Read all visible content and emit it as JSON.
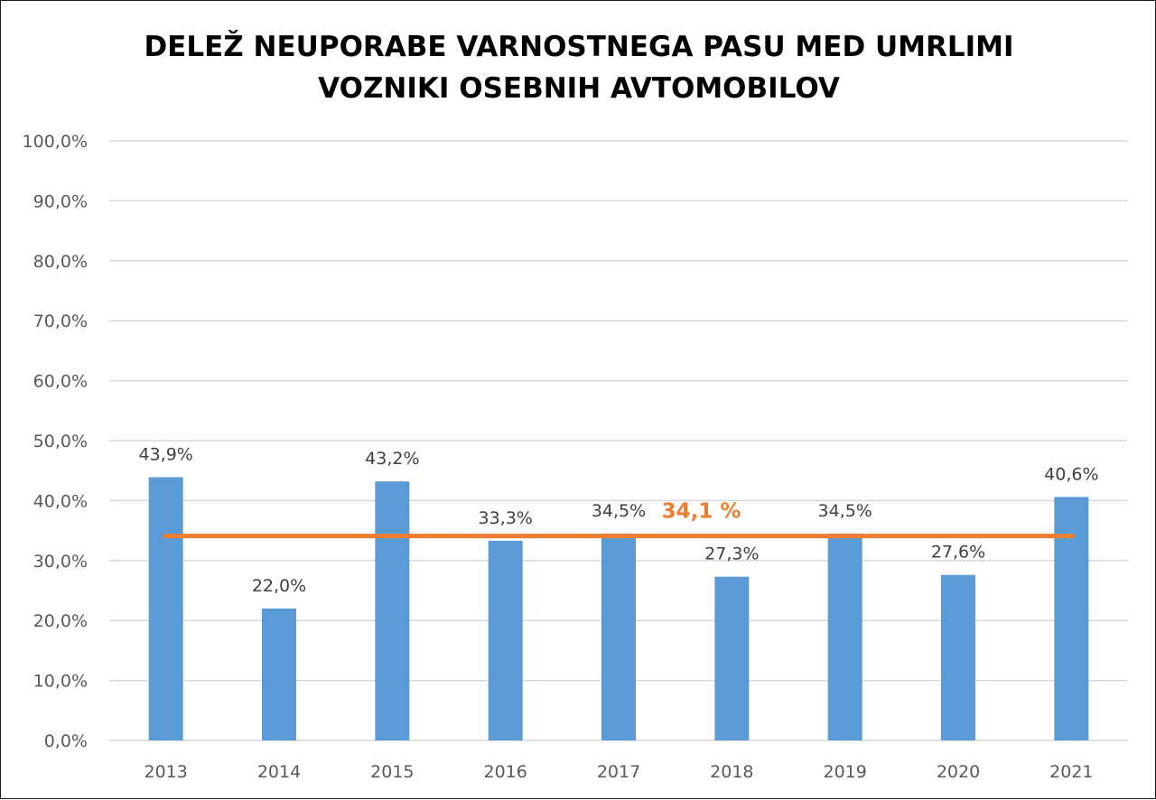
{
  "chart_data": {
    "type": "bar",
    "title_lines": [
      "DELEŽ NEUPORABE VARNOSTNEGA PASU MED UMRLIMI",
      "VOZNIKI OSEBNIH AVTOMOBILOV"
    ],
    "categories": [
      "2013",
      "2014",
      "2015",
      "2016",
      "2017",
      "2018",
      "2019",
      "2020",
      "2021"
    ],
    "values": [
      43.9,
      22.0,
      43.2,
      33.3,
      34.5,
      27.3,
      34.5,
      27.6,
      40.6
    ],
    "data_labels": [
      "43,9%",
      "22,0%",
      "43,2%",
      "33,3%",
      "34,5%",
      "27,3%",
      "34,5%",
      "27,6%",
      "40,6%"
    ],
    "ylim": [
      0,
      100
    ],
    "yticks": [
      0,
      10,
      20,
      30,
      40,
      50,
      60,
      70,
      80,
      90,
      100
    ],
    "ytick_labels": [
      "0,0%",
      "10,0%",
      "20,0%",
      "30,0%",
      "40,0%",
      "50,0%",
      "60,0%",
      "70,0%",
      "80,0%",
      "90,0%",
      "100,0%"
    ],
    "grid": true,
    "xlabel": "",
    "ylabel": "",
    "average_line": {
      "value": 34.1,
      "label": "34,1 %"
    },
    "colors": {
      "bar": "#5b9bd5",
      "average": "#ed7d31",
      "grid": "#d9d9d9"
    }
  }
}
